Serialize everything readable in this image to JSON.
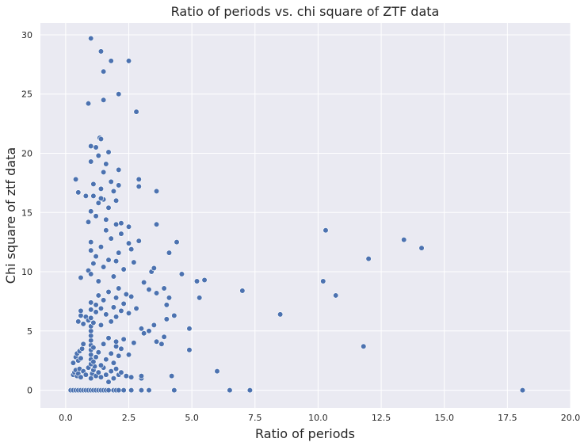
{
  "chart_data": {
    "type": "scatter",
    "title": "Ratio of periods vs. chi square of ZTF data",
    "xlabel": "Ratio of periods",
    "ylabel": "Chi square of ztf data",
    "xlim": [
      -1.0,
      20.0
    ],
    "ylim": [
      -1.5,
      31.0
    ],
    "grid": true,
    "x_ticks": [
      "0.0",
      "2.5",
      "5.0",
      "7.5",
      "10.0",
      "12.5",
      "15.0",
      "17.5",
      "20.0"
    ],
    "y_ticks": [
      "0",
      "5",
      "10",
      "15",
      "20",
      "25",
      "30"
    ],
    "colors": {
      "background": "#eaeaf2",
      "grid": "#ffffff",
      "marker": "#4c72b0",
      "marker_edge": "#ffffff"
    },
    "points": [
      [
        0.2,
        0
      ],
      [
        0.3,
        0
      ],
      [
        0.4,
        0
      ],
      [
        0.5,
        0
      ],
      [
        0.6,
        0
      ],
      [
        0.7,
        0
      ],
      [
        0.8,
        0
      ],
      [
        0.9,
        0
      ],
      [
        1.0,
        0
      ],
      [
        1.1,
        0
      ],
      [
        1.2,
        0
      ],
      [
        1.3,
        0
      ],
      [
        1.4,
        0
      ],
      [
        1.5,
        0
      ],
      [
        1.6,
        0
      ],
      [
        1.7,
        0
      ],
      [
        1.9,
        0
      ],
      [
        2.0,
        0
      ],
      [
        2.1,
        0
      ],
      [
        2.3,
        0
      ],
      [
        2.6,
        0
      ],
      [
        3.0,
        0
      ],
      [
        3.3,
        0
      ],
      [
        4.3,
        0
      ],
      [
        6.5,
        0
      ],
      [
        7.3,
        0
      ],
      [
        18.1,
        0
      ],
      [
        0.3,
        1.3
      ],
      [
        0.35,
        1.5
      ],
      [
        0.4,
        1.7
      ],
      [
        0.45,
        1.2
      ],
      [
        0.5,
        1.4
      ],
      [
        0.55,
        1.8
      ],
      [
        0.6,
        1.1
      ],
      [
        0.7,
        1.6
      ],
      [
        0.8,
        1.3
      ],
      [
        0.9,
        1.9
      ],
      [
        1.0,
        1.0
      ],
      [
        1.05,
        1.4
      ],
      [
        1.1,
        1.7
      ],
      [
        1.15,
        2.0
      ],
      [
        1.2,
        1.2
      ],
      [
        1.3,
        1.5
      ],
      [
        1.4,
        1.1
      ],
      [
        1.5,
        1.9
      ],
      [
        1.6,
        1.3
      ],
      [
        1.7,
        0.7
      ],
      [
        1.8,
        1.6
      ],
      [
        1.9,
        1.0
      ],
      [
        2.0,
        1.8
      ],
      [
        2.1,
        1.3
      ],
      [
        2.2,
        1.5
      ],
      [
        2.4,
        1.2
      ],
      [
        2.6,
        1.1
      ],
      [
        3.0,
        1.0
      ],
      [
        3.0,
        1.2
      ],
      [
        4.2,
        1.2
      ],
      [
        6.0,
        1.6
      ],
      [
        0.3,
        2.3
      ],
      [
        0.4,
        2.8
      ],
      [
        0.45,
        3.1
      ],
      [
        0.5,
        2.5
      ],
      [
        0.55,
        3.3
      ],
      [
        0.6,
        2.7
      ],
      [
        0.65,
        3.5
      ],
      [
        0.7,
        3.9
      ],
      [
        1.0,
        2.2
      ],
      [
        1.0,
        2.6
      ],
      [
        1.0,
        3.0
      ],
      [
        1.0,
        3.4
      ],
      [
        1.0,
        3.8
      ],
      [
        1.0,
        4.2
      ],
      [
        1.0,
        4.6
      ],
      [
        1.0,
        5.0
      ],
      [
        1.0,
        5.4
      ],
      [
        1.1,
        2.4
      ],
      [
        1.1,
        3.6
      ],
      [
        1.2,
        2.8
      ],
      [
        1.3,
        3.2
      ],
      [
        1.4,
        2.1
      ],
      [
        1.5,
        3.9
      ],
      [
        1.6,
        2.6
      ],
      [
        1.7,
        4.4
      ],
      [
        1.8,
        3.1
      ],
      [
        1.9,
        2.3
      ],
      [
        2.0,
        3.7
      ],
      [
        2.0,
        4.1
      ],
      [
        2.1,
        2.9
      ],
      [
        2.2,
        3.5
      ],
      [
        2.3,
        4.3
      ],
      [
        2.5,
        3.0
      ],
      [
        2.7,
        4.0
      ],
      [
        0.5,
        5.8
      ],
      [
        0.6,
        6.3
      ],
      [
        0.7,
        5.6
      ],
      [
        0.8,
        6.2
      ],
      [
        0.9,
        5.9
      ],
      [
        1.0,
        6.1
      ],
      [
        1.0,
        6.8
      ],
      [
        1.0,
        7.4
      ],
      [
        1.1,
        5.7
      ],
      [
        1.2,
        6.6
      ],
      [
        1.2,
        7.2
      ],
      [
        1.3,
        8.0
      ],
      [
        1.4,
        5.5
      ],
      [
        1.4,
        6.9
      ],
      [
        1.5,
        7.6
      ],
      [
        1.6,
        6.4
      ],
      [
        1.7,
        8.3
      ],
      [
        1.8,
        5.8
      ],
      [
        1.9,
        7.0
      ],
      [
        2.0,
        6.2
      ],
      [
        2.0,
        7.8
      ],
      [
        2.1,
        8.6
      ],
      [
        2.2,
        6.7
      ],
      [
        2.3,
        7.3
      ],
      [
        2.4,
        8.1
      ],
      [
        2.5,
        6.5
      ],
      [
        2.6,
        7.9
      ],
      [
        2.8,
        6.9
      ],
      [
        3.0,
        5.2
      ],
      [
        3.1,
        4.8
      ],
      [
        3.3,
        5.0
      ],
      [
        3.5,
        5.5
      ],
      [
        3.6,
        4.1
      ],
      [
        3.8,
        3.9
      ],
      [
        3.9,
        4.5
      ],
      [
        4.0,
        6.0
      ],
      [
        4.3,
        6.3
      ],
      [
        4.9,
        5.2
      ],
      [
        4.9,
        3.4
      ],
      [
        0.6,
        9.5
      ],
      [
        0.6,
        6.7
      ],
      [
        0.9,
        10.1
      ],
      [
        1.0,
        11.8
      ],
      [
        1.0,
        12.5
      ],
      [
        1.0,
        9.8
      ],
      [
        1.1,
        10.7
      ],
      [
        1.2,
        11.3
      ],
      [
        1.3,
        9.2
      ],
      [
        1.4,
        12.1
      ],
      [
        1.5,
        10.4
      ],
      [
        1.6,
        13.5
      ],
      [
        1.7,
        11.0
      ],
      [
        1.8,
        12.8
      ],
      [
        1.9,
        9.6
      ],
      [
        2.0,
        10.9
      ],
      [
        2.1,
        11.6
      ],
      [
        2.2,
        13.2
      ],
      [
        2.3,
        10.2
      ],
      [
        2.5,
        12.4
      ],
      [
        2.6,
        11.9
      ],
      [
        2.7,
        10.8
      ],
      [
        2.9,
        12.6
      ],
      [
        3.1,
        9.1
      ],
      [
        3.3,
        8.5
      ],
      [
        3.4,
        10.0
      ],
      [
        3.5,
        10.3
      ],
      [
        3.6,
        8.2
      ],
      [
        3.9,
        8.6
      ],
      [
        4.0,
        7.2
      ],
      [
        4.1,
        7.8
      ],
      [
        4.1,
        11.6
      ],
      [
        4.4,
        12.5
      ],
      [
        4.6,
        9.8
      ],
      [
        5.2,
        9.2
      ],
      [
        5.3,
        7.8
      ],
      [
        5.5,
        9.3
      ],
      [
        7.0,
        8.4
      ],
      [
        0.9,
        14.2
      ],
      [
        1.0,
        15.1
      ],
      [
        1.1,
        16.4
      ],
      [
        1.2,
        14.7
      ],
      [
        1.3,
        15.8
      ],
      [
        1.4,
        17.0
      ],
      [
        1.5,
        16.1
      ],
      [
        1.6,
        14.4
      ],
      [
        1.7,
        15.4
      ],
      [
        1.8,
        17.6
      ],
      [
        1.9,
        16.8
      ],
      [
        2.0,
        14.0
      ],
      [
        2.1,
        17.3
      ],
      [
        2.2,
        14.1
      ],
      [
        2.5,
        13.8
      ],
      [
        2.9,
        17.2
      ],
      [
        2.9,
        17.8
      ],
      [
        3.6,
        14.0
      ],
      [
        3.6,
        16.8
      ],
      [
        0.4,
        17.8
      ],
      [
        0.5,
        16.7
      ],
      [
        0.8,
        16.4
      ],
      [
        1.0,
        19.3
      ],
      [
        1.0,
        20.6
      ],
      [
        1.1,
        17.4
      ],
      [
        1.2,
        20.5
      ],
      [
        1.3,
        19.8
      ],
      [
        1.35,
        21.3
      ],
      [
        1.4,
        21.2
      ],
      [
        1.5,
        18.4
      ],
      [
        1.6,
        19.1
      ],
      [
        1.7,
        20.1
      ],
      [
        2.1,
        18.6
      ],
      [
        1.4,
        16.2
      ],
      [
        2.0,
        16.0
      ],
      [
        0.9,
        24.2
      ],
      [
        1.5,
        24.5
      ],
      [
        2.1,
        25.0
      ],
      [
        2.8,
        23.5
      ],
      [
        1.5,
        26.9
      ],
      [
        1.4,
        28.6
      ],
      [
        1.8,
        27.8
      ],
      [
        2.5,
        27.8
      ],
      [
        1.0,
        29.7
      ],
      [
        8.5,
        6.4
      ],
      [
        10.2,
        9.2
      ],
      [
        10.3,
        13.5
      ],
      [
        10.7,
        8.0
      ],
      [
        11.8,
        3.7
      ],
      [
        12.0,
        11.1
      ],
      [
        13.4,
        12.7
      ],
      [
        14.1,
        12.0
      ]
    ]
  }
}
